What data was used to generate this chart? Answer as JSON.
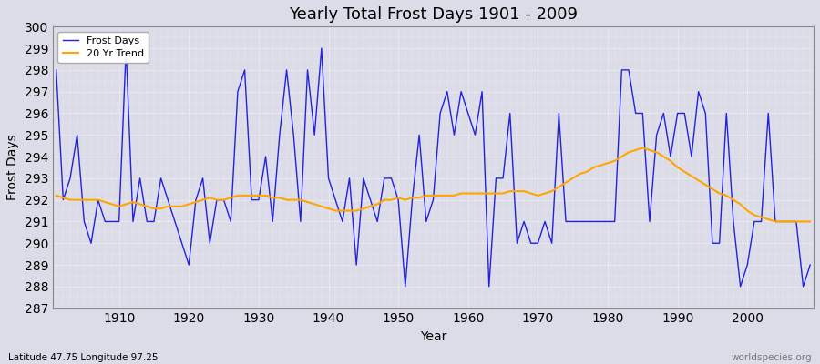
{
  "title": "Yearly Total Frost Days 1901 - 2009",
  "xlabel": "Year",
  "ylabel": "Frost Days",
  "bottom_left_label": "Latitude 47.75 Longitude 97.25",
  "bottom_right_label": "worldspecies.org",
  "ylim": [
    287,
    300
  ],
  "yticks": [
    287,
    288,
    289,
    290,
    291,
    292,
    293,
    294,
    295,
    296,
    297,
    298,
    299,
    300
  ],
  "frost_line_color": "#2222dd",
  "trend_line_color": "#FFA500",
  "bg_color": "#dcdce8",
  "plot_bg_color": "#dcdce8",
  "figsize": [
    9.0,
    4.0
  ],
  "dpi": 100,
  "frost_days": {
    "1901": 298,
    "1902": 292,
    "1903": 293,
    "1904": 295,
    "1905": 291,
    "1906": 290,
    "1907": 292,
    "1908": 291,
    "1909": 291,
    "1910": 291,
    "1911": 299,
    "1912": 291,
    "1913": 293,
    "1914": 291,
    "1915": 291,
    "1916": 293,
    "1917": 292,
    "1918": 291,
    "1919": 290,
    "1920": 289,
    "1921": 292,
    "1922": 293,
    "1923": 290,
    "1924": 292,
    "1925": 292,
    "1926": 291,
    "1927": 297,
    "1928": 298,
    "1929": 292,
    "1930": 292,
    "1931": 294,
    "1932": 291,
    "1933": 295,
    "1934": 298,
    "1935": 295,
    "1936": 291,
    "1937": 298,
    "1938": 295,
    "1939": 299,
    "1940": 293,
    "1941": 292,
    "1942": 291,
    "1943": 293,
    "1944": 289,
    "1945": 293,
    "1946": 292,
    "1947": 291,
    "1948": 293,
    "1949": 293,
    "1950": 292,
    "1951": 288,
    "1952": 292,
    "1953": 295,
    "1954": 291,
    "1955": 292,
    "1956": 296,
    "1957": 297,
    "1958": 295,
    "1959": 297,
    "1960": 296,
    "1961": 295,
    "1962": 297,
    "1963": 288,
    "1964": 293,
    "1965": 293,
    "1966": 296,
    "1967": 290,
    "1968": 291,
    "1969": 290,
    "1970": 290,
    "1971": 291,
    "1972": 290,
    "1973": 296,
    "1974": 291,
    "1975": 291,
    "1976": 291,
    "1977": 291,
    "1978": 291,
    "1979": 291,
    "1980": 291,
    "1981": 291,
    "1982": 298,
    "1983": 298,
    "1984": 296,
    "1985": 296,
    "1986": 291,
    "1987": 295,
    "1988": 296,
    "1989": 294,
    "1990": 296,
    "1991": 296,
    "1992": 294,
    "1993": 297,
    "1994": 296,
    "1995": 290,
    "1996": 290,
    "1997": 296,
    "1998": 291,
    "1999": 288,
    "2000": 289,
    "2001": 291,
    "2002": 291,
    "2003": 296,
    "2004": 291,
    "2005": 291,
    "2006": 291,
    "2007": 291,
    "2008": 288,
    "2009": 289
  },
  "trend_days": {
    "1901": 292.2,
    "1902": 292.1,
    "1903": 292.0,
    "1904": 292.0,
    "1905": 292.0,
    "1906": 292.0,
    "1907": 292.0,
    "1908": 291.9,
    "1909": 291.8,
    "1910": 291.7,
    "1911": 291.8,
    "1912": 291.9,
    "1913": 291.8,
    "1914": 291.7,
    "1915": 291.6,
    "1916": 291.6,
    "1917": 291.7,
    "1918": 291.7,
    "1919": 291.7,
    "1920": 291.8,
    "1921": 291.9,
    "1922": 292.0,
    "1923": 292.1,
    "1924": 292.0,
    "1925": 292.0,
    "1926": 292.1,
    "1927": 292.2,
    "1928": 292.2,
    "1929": 292.2,
    "1930": 292.2,
    "1931": 292.2,
    "1932": 292.1,
    "1933": 292.1,
    "1934": 292.0,
    "1935": 292.0,
    "1936": 292.0,
    "1937": 291.9,
    "1938": 291.8,
    "1939": 291.7,
    "1940": 291.6,
    "1941": 291.5,
    "1942": 291.5,
    "1943": 291.5,
    "1944": 291.5,
    "1945": 291.6,
    "1946": 291.7,
    "1947": 291.8,
    "1948": 292.0,
    "1949": 292.0,
    "1950": 292.1,
    "1951": 292.0,
    "1952": 292.1,
    "1953": 292.1,
    "1954": 292.2,
    "1955": 292.2,
    "1956": 292.2,
    "1957": 292.2,
    "1958": 292.2,
    "1959": 292.3,
    "1960": 292.3,
    "1961": 292.3,
    "1962": 292.3,
    "1963": 292.3,
    "1964": 292.3,
    "1965": 292.3,
    "1966": 292.4,
    "1967": 292.4,
    "1968": 292.4,
    "1969": 292.3,
    "1970": 292.2,
    "1971": 292.3,
    "1972": 292.4,
    "1973": 292.6,
    "1974": 292.8,
    "1975": 293.0,
    "1976": 293.2,
    "1977": 293.3,
    "1978": 293.5,
    "1979": 293.6,
    "1980": 293.7,
    "1981": 293.8,
    "1982": 294.0,
    "1983": 294.2,
    "1984": 294.3,
    "1985": 294.4,
    "1986": 294.3,
    "1987": 294.2,
    "1988": 294.0,
    "1989": 293.8,
    "1990": 293.5,
    "1991": 293.3,
    "1992": 293.1,
    "1993": 292.9,
    "1994": 292.7,
    "1995": 292.5,
    "1996": 292.3,
    "1997": 292.2,
    "1998": 292.0,
    "1999": 291.8,
    "2000": 291.5,
    "2001": 291.3,
    "2002": 291.2,
    "2003": 291.1,
    "2004": 291.0,
    "2005": 291.0,
    "2006": 291.0,
    "2007": 291.0,
    "2008": 291.0,
    "2009": 291.0
  }
}
